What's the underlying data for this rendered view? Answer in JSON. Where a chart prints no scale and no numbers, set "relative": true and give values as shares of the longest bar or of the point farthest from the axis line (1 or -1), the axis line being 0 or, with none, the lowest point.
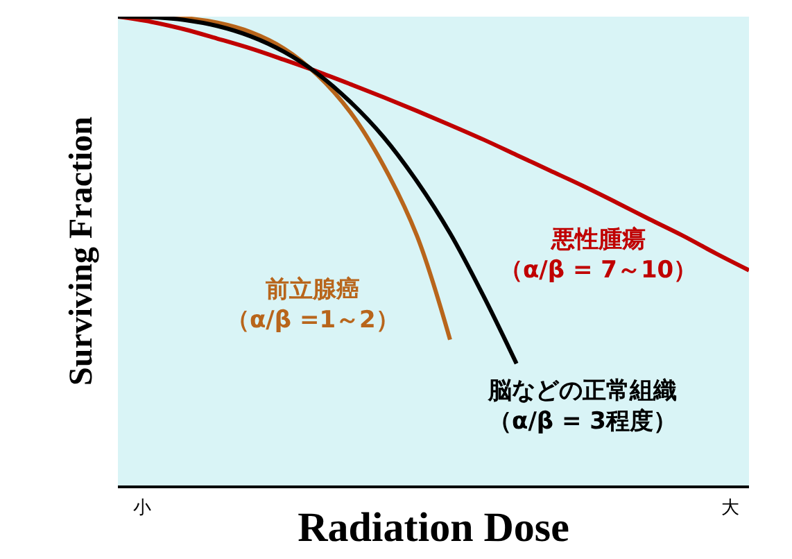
{
  "chart_data": {
    "type": "line",
    "relative": true,
    "xlabel": "Radiation Dose",
    "ylabel": "Surviving Fraction",
    "categories": [
      null,
      null,
      null,
      null,
      null,
      null,
      null,
      null,
      null,
      null,
      null,
      null,
      null,
      null,
      null,
      null,
      null,
      null,
      null,
      null
    ],
    "series": [
      {
        "name": "悪性腫瘍（α/β = 7～10）",
        "color": "#c00000",
        "values": [
          1.0,
          0.989,
          0.973,
          0.953,
          0.932,
          0.908,
          0.883,
          0.856,
          0.828,
          0.799,
          0.769,
          0.738,
          0.705,
          0.672,
          0.639,
          0.604,
          0.568,
          0.533,
          0.495,
          0.459
        ]
      },
      {
        "name": "前立腺癌（α/β =1～2）",
        "color": "#b8651b",
        "values": [
          1.0,
          0.999,
          0.997,
          0.987,
          0.967,
          0.932,
          0.876,
          0.796,
          0.682,
          0.533,
          0.311,
          null,
          null,
          null,
          null,
          null,
          null,
          null,
          null,
          null
        ]
      },
      {
        "name": "脳などの正常組織（α/β = 3程度）",
        "color": "#000000",
        "values": [
          1.0,
          0.999,
          0.993,
          0.98,
          0.958,
          0.925,
          0.879,
          0.818,
          0.743,
          0.649,
          0.538,
          0.405,
          0.26,
          null,
          null,
          null,
          null,
          null,
          null,
          null
        ]
      }
    ],
    "annotations": [
      "小",
      "大"
    ],
    "legend": false,
    "grid": false,
    "marker": "none",
    "line_style": "solid"
  }
}
